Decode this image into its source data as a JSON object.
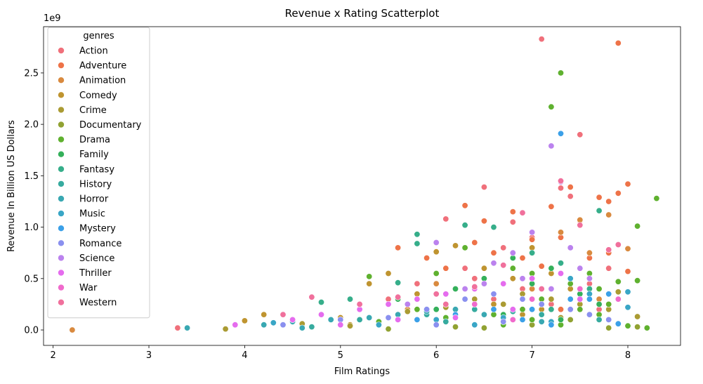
{
  "chart_data": {
    "type": "scatter",
    "title": "Revenue x Rating Scatterplot",
    "xlabel": "Film Ratings",
    "ylabel": "Revenue In Billion US Dollars",
    "y_offset_label": "1e9",
    "xlim": [
      1.9,
      8.55
    ],
    "ylim": [
      -0.15,
      2.95
    ],
    "x_ticks": [
      2,
      3,
      4,
      5,
      6,
      7,
      8
    ],
    "y_ticks": [
      0.0,
      0.5,
      1.0,
      1.5,
      2.0,
      2.5
    ],
    "x_tick_labels": [
      "2",
      "3",
      "4",
      "5",
      "6",
      "7",
      "8"
    ],
    "y_tick_labels": [
      "0.0",
      "0.5",
      "1.0",
      "1.5",
      "2.0",
      "2.5"
    ],
    "grid": false,
    "legend": {
      "title": "genres",
      "placement": "top-left",
      "entries": [
        {
          "name": "Action",
          "color": "#f0707b"
        },
        {
          "name": "Adventure",
          "color": "#ee7348"
        },
        {
          "name": "Animation",
          "color": "#d98a3f"
        },
        {
          "name": "Comedy",
          "color": "#bf9430"
        },
        {
          "name": "Crime",
          "color": "#aa9b33"
        },
        {
          "name": "Documentary",
          "color": "#91a232"
        },
        {
          "name": "Drama",
          "color": "#5fb12f"
        },
        {
          "name": "Family",
          "color": "#34b05a"
        },
        {
          "name": "Fantasy",
          "color": "#36ae8a"
        },
        {
          "name": "History",
          "color": "#37ab9f"
        },
        {
          "name": "Horror",
          "color": "#39a8b2"
        },
        {
          "name": "Music",
          "color": "#39a6c6"
        },
        {
          "name": "Mystery",
          "color": "#3ba0e8"
        },
        {
          "name": "Romance",
          "color": "#8a90ef"
        },
        {
          "name": "Science",
          "color": "#bb82ee"
        },
        {
          "name": "Thriller",
          "color": "#e56cee"
        },
        {
          "name": "War",
          "color": "#f06acc"
        },
        {
          "name": "Western",
          "color": "#f0709c"
        }
      ]
    },
    "series": [
      {
        "name": "Action",
        "points": [
          [
            3.3,
            0.02
          ],
          [
            5.5,
            0.3
          ],
          [
            5.8,
            0.45
          ],
          [
            6.0,
            0.2
          ],
          [
            6.1,
            1.08
          ],
          [
            6.3,
            0.6
          ],
          [
            6.5,
            1.39
          ],
          [
            6.7,
            0.8
          ],
          [
            6.8,
            1.05
          ],
          [
            7.0,
            0.9
          ],
          [
            7.1,
            2.83
          ],
          [
            7.2,
            0.55
          ],
          [
            7.3,
            1.38
          ],
          [
            7.4,
            1.3
          ],
          [
            7.5,
            1.9
          ],
          [
            7.6,
            0.45
          ],
          [
            7.8,
            0.6
          ],
          [
            6.6,
            0.3
          ],
          [
            6.9,
            0.4
          ],
          [
            7.2,
            0.25
          ],
          [
            6.2,
            0.15
          ],
          [
            5.6,
            0.1
          ],
          [
            7.7,
            0.2
          ],
          [
            6.4,
            0.5
          ]
        ]
      },
      {
        "name": "Adventure",
        "points": [
          [
            5.6,
            0.8
          ],
          [
            5.9,
            0.7
          ],
          [
            6.1,
            0.6
          ],
          [
            6.3,
            1.21
          ],
          [
            6.5,
            1.06
          ],
          [
            6.6,
            0.75
          ],
          [
            6.8,
            1.15
          ],
          [
            6.9,
            0.7
          ],
          [
            7.0,
            0.88
          ],
          [
            7.2,
            1.2
          ],
          [
            7.3,
            0.9
          ],
          [
            7.4,
            1.39
          ],
          [
            7.5,
            1.06
          ],
          [
            7.7,
            1.29
          ],
          [
            7.8,
            1.25
          ],
          [
            7.9,
            2.79
          ],
          [
            7.9,
            1.33
          ],
          [
            8.0,
            1.42
          ],
          [
            8.0,
            0.57
          ],
          [
            6.4,
            0.85
          ],
          [
            6.7,
            0.45
          ],
          [
            7.1,
            0.62
          ],
          [
            7.6,
            0.7
          ],
          [
            5.2,
            0.25
          ],
          [
            6.0,
            0.35
          ],
          [
            7.3,
            0.2
          ],
          [
            7.8,
            0.75
          ]
        ]
      },
      {
        "name": "Animation",
        "points": [
          [
            2.2,
            0.0
          ],
          [
            6.2,
            0.82
          ],
          [
            6.6,
            0.65
          ],
          [
            6.8,
            0.5
          ],
          [
            7.0,
            0.4
          ],
          [
            7.3,
            0.95
          ],
          [
            7.5,
            1.07
          ],
          [
            7.6,
            0.75
          ],
          [
            7.8,
            1.12
          ],
          [
            8.0,
            0.79
          ],
          [
            6.0,
            0.45
          ],
          [
            7.1,
            0.3
          ],
          [
            7.7,
            0.3
          ],
          [
            5.7,
            0.2
          ]
        ]
      },
      {
        "name": "Comedy",
        "points": [
          [
            4.0,
            0.09
          ],
          [
            4.2,
            0.15
          ],
          [
            5.0,
            0.12
          ],
          [
            5.3,
            0.45
          ],
          [
            5.5,
            0.55
          ],
          [
            5.8,
            0.35
          ],
          [
            6.0,
            0.76
          ],
          [
            6.2,
            0.82
          ],
          [
            6.5,
            0.6
          ],
          [
            6.8,
            0.5
          ],
          [
            7.0,
            0.8
          ],
          [
            7.2,
            0.55
          ],
          [
            7.4,
            0.4
          ],
          [
            7.6,
            0.5
          ],
          [
            7.9,
            0.47
          ],
          [
            6.3,
            0.3
          ],
          [
            6.6,
            0.25
          ],
          [
            7.1,
            0.2
          ],
          [
            5.6,
            0.15
          ],
          [
            7.7,
            0.1
          ],
          [
            6.9,
            0.15
          ],
          [
            4.6,
            0.05
          ],
          [
            5.1,
            0.05
          ]
        ]
      },
      {
        "name": "Crime",
        "points": [
          [
            3.8,
            0.01
          ],
          [
            4.6,
            0.06
          ],
          [
            5.1,
            0.04
          ],
          [
            5.7,
            0.18
          ],
          [
            6.1,
            0.22
          ],
          [
            6.4,
            0.3
          ],
          [
            6.7,
            0.25
          ],
          [
            6.9,
            0.35
          ],
          [
            7.2,
            0.3
          ],
          [
            7.5,
            0.25
          ],
          [
            7.8,
            0.2
          ],
          [
            7.9,
            0.37
          ],
          [
            8.1,
            0.13
          ],
          [
            6.0,
            0.1
          ],
          [
            7.3,
            0.12
          ]
        ]
      },
      {
        "name": "Documentary",
        "points": [
          [
            6.5,
            0.02
          ],
          [
            7.0,
            0.05
          ],
          [
            7.4,
            0.1
          ],
          [
            7.8,
            0.02
          ],
          [
            8.1,
            0.03
          ],
          [
            5.5,
            0.01
          ],
          [
            6.2,
            0.03
          ]
        ]
      },
      {
        "name": "Drama",
        "points": [
          [
            5.3,
            0.52
          ],
          [
            6.0,
            0.55
          ],
          [
            6.3,
            0.8
          ],
          [
            6.5,
            0.45
          ],
          [
            6.8,
            0.6
          ],
          [
            7.0,
            0.55
          ],
          [
            7.2,
            2.17
          ],
          [
            7.3,
            2.5
          ],
          [
            7.4,
            0.45
          ],
          [
            7.6,
            0.55
          ],
          [
            7.7,
            0.4
          ],
          [
            7.9,
            0.47
          ],
          [
            8.1,
            1.01
          ],
          [
            8.1,
            0.48
          ],
          [
            8.3,
            1.28
          ],
          [
            8.2,
            0.02
          ],
          [
            8.0,
            0.04
          ],
          [
            7.8,
            0.25
          ],
          [
            7.5,
            0.2
          ],
          [
            6.9,
            0.2
          ],
          [
            6.6,
            0.15
          ],
          [
            6.1,
            0.12
          ],
          [
            5.8,
            0.2
          ],
          [
            5.4,
            0.08
          ],
          [
            7.1,
            0.3
          ],
          [
            7.7,
            0.15
          ],
          [
            6.4,
            0.25
          ],
          [
            7.3,
            0.05
          ],
          [
            6.7,
            0.05
          ],
          [
            7.0,
            0.1
          ]
        ]
      },
      {
        "name": "Family",
        "points": [
          [
            5.6,
            0.3
          ],
          [
            6.2,
            0.4
          ],
          [
            6.5,
            0.5
          ],
          [
            6.8,
            0.7
          ],
          [
            7.0,
            0.45
          ],
          [
            7.2,
            0.6
          ],
          [
            7.5,
            0.35
          ],
          [
            7.7,
            0.25
          ],
          [
            6.0,
            0.2
          ],
          [
            6.7,
            0.15
          ],
          [
            7.3,
            0.1
          ]
        ]
      },
      {
        "name": "Fantasy",
        "points": [
          [
            4.8,
            0.27
          ],
          [
            5.1,
            0.3
          ],
          [
            5.6,
            0.46
          ],
          [
            5.8,
            0.84
          ],
          [
            5.8,
            0.93
          ],
          [
            6.3,
            1.02
          ],
          [
            6.6,
            1.0
          ],
          [
            7.0,
            0.75
          ],
          [
            7.3,
            0.65
          ],
          [
            7.5,
            0.6
          ],
          [
            7.7,
            1.16
          ],
          [
            7.6,
            0.4
          ],
          [
            6.1,
            0.35
          ],
          [
            6.9,
            0.3
          ],
          [
            7.2,
            0.2
          ]
        ]
      },
      {
        "name": "History",
        "points": [
          [
            4.7,
            0.03
          ],
          [
            5.2,
            0.1
          ],
          [
            5.9,
            0.15
          ],
          [
            6.4,
            0.2
          ],
          [
            6.8,
            0.18
          ],
          [
            7.1,
            0.15
          ],
          [
            7.4,
            0.3
          ],
          [
            7.7,
            0.1
          ],
          [
            6.1,
            0.08
          ]
        ]
      },
      {
        "name": "Horror",
        "points": [
          [
            3.4,
            0.02
          ],
          [
            4.2,
            0.05
          ],
          [
            4.5,
            0.08
          ],
          [
            4.9,
            0.1
          ],
          [
            5.3,
            0.12
          ],
          [
            5.6,
            0.15
          ],
          [
            5.9,
            0.18
          ],
          [
            6.2,
            0.2
          ],
          [
            6.5,
            0.15
          ],
          [
            6.8,
            0.1
          ],
          [
            7.1,
            0.08
          ],
          [
            5.0,
            0.05
          ],
          [
            4.6,
            0.02
          ],
          [
            6.0,
            0.05
          ]
        ]
      },
      {
        "name": "Music",
        "points": [
          [
            4.3,
            0.07
          ],
          [
            5.4,
            0.05
          ],
          [
            6.0,
            0.1
          ],
          [
            6.7,
            0.12
          ],
          [
            7.2,
            0.08
          ],
          [
            7.4,
            0.5
          ],
          [
            7.6,
            0.35
          ],
          [
            8.0,
            0.37
          ],
          [
            8.0,
            0.22
          ],
          [
            7.9,
            0.06
          ],
          [
            6.4,
            0.05
          ]
        ]
      },
      {
        "name": "Mystery",
        "points": [
          [
            5.8,
            0.1
          ],
          [
            6.2,
            0.15
          ],
          [
            6.6,
            0.2
          ],
          [
            7.0,
            0.2
          ],
          [
            7.3,
            1.91
          ],
          [
            7.4,
            0.3
          ],
          [
            7.6,
            0.3
          ],
          [
            7.8,
            0.35
          ],
          [
            7.9,
            0.06
          ],
          [
            6.9,
            0.1
          ],
          [
            7.2,
            0.05
          ]
        ]
      },
      {
        "name": "Romance",
        "points": [
          [
            4.4,
            0.05
          ],
          [
            5.0,
            0.1
          ],
          [
            5.5,
            0.12
          ],
          [
            5.9,
            0.2
          ],
          [
            6.3,
            0.3
          ],
          [
            6.6,
            0.35
          ],
          [
            6.9,
            0.3
          ],
          [
            7.1,
            0.25
          ],
          [
            7.4,
            0.2
          ],
          [
            7.6,
            0.15
          ],
          [
            7.8,
            0.1
          ],
          [
            6.0,
            0.05
          ],
          [
            6.7,
            0.08
          ]
        ]
      },
      {
        "name": "Science",
        "points": [
          [
            5.7,
            0.25
          ],
          [
            6.0,
            0.85
          ],
          [
            6.3,
            0.4
          ],
          [
            6.6,
            0.65
          ],
          [
            6.8,
            0.75
          ],
          [
            7.0,
            0.95
          ],
          [
            7.2,
            1.79
          ],
          [
            7.3,
            1.44
          ],
          [
            7.4,
            0.8
          ],
          [
            7.5,
            0.6
          ],
          [
            7.2,
            0.4
          ],
          [
            6.9,
            0.5
          ],
          [
            6.5,
            0.45
          ],
          [
            7.6,
            0.5
          ]
        ]
      },
      {
        "name": "Thriller",
        "points": [
          [
            3.9,
            0.05
          ],
          [
            4.5,
            0.1
          ],
          [
            4.8,
            0.15
          ],
          [
            5.2,
            0.2
          ],
          [
            5.5,
            0.25
          ],
          [
            5.8,
            0.3
          ],
          [
            6.1,
            0.35
          ],
          [
            6.4,
            0.4
          ],
          [
            6.7,
            0.45
          ],
          [
            7.0,
            0.5
          ],
          [
            7.3,
            0.55
          ],
          [
            5.6,
            0.1
          ],
          [
            6.2,
            0.12
          ],
          [
            6.8,
            0.2
          ],
          [
            7.5,
            0.3
          ],
          [
            5.0,
            0.05
          ]
        ]
      },
      {
        "name": "War",
        "points": [
          [
            6.4,
            0.25
          ],
          [
            7.0,
            0.3
          ],
          [
            7.5,
            0.4
          ],
          [
            7.9,
            0.3
          ],
          [
            6.8,
            0.1
          ]
        ]
      },
      {
        "name": "Western",
        "points": [
          [
            4.4,
            0.15
          ],
          [
            4.7,
            0.32
          ],
          [
            5.2,
            0.25
          ],
          [
            5.6,
            0.32
          ],
          [
            6.0,
            0.35
          ],
          [
            6.4,
            0.42
          ],
          [
            6.7,
            0.63
          ],
          [
            6.9,
            1.14
          ],
          [
            7.3,
            1.45
          ],
          [
            7.5,
            1.02
          ],
          [
            7.8,
            0.78
          ],
          [
            7.9,
            0.83
          ],
          [
            6.1,
            0.25
          ],
          [
            7.1,
            0.4
          ]
        ]
      }
    ]
  }
}
